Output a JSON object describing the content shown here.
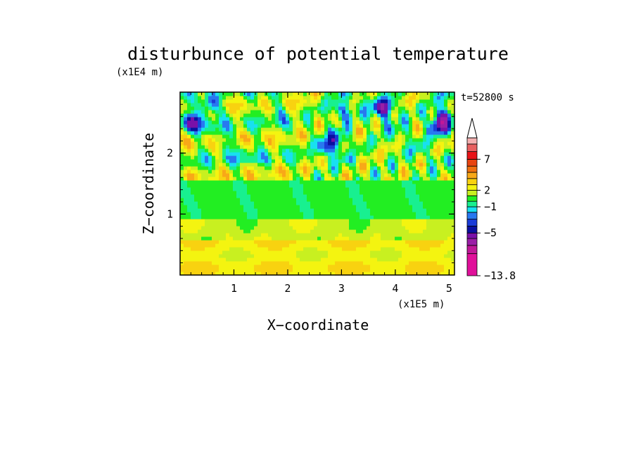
{
  "chart_data": {
    "type": "heatmap",
    "title": "disturbunce of potential temperature",
    "time_label": "t=52800 s",
    "xlabel": "X−coordinate",
    "ylabel": "Z−coordinate",
    "x_unit": "(x1E5 m)",
    "y_unit": "(x1E4 m)",
    "xlim": [
      0,
      5.1
    ],
    "ylim": [
      0,
      3.0
    ],
    "x_ticks": [
      1,
      2,
      3,
      4,
      5
    ],
    "y_ticks": [
      1,
      2
    ],
    "x_tick_labels": [
      "1",
      "2",
      "3",
      "4",
      "5"
    ],
    "y_tick_labels": [
      "1",
      "2"
    ],
    "colorbar": {
      "levels_shown": [
        "7",
        "2",
        "−1",
        "−5",
        "−13.8"
      ],
      "level_values": [
        7,
        2,
        -1,
        -5,
        -13.8
      ],
      "bin_edges": [
        -13.8,
        -11,
        -9,
        -7,
        -5,
        -4,
        -3,
        -2,
        -1,
        0,
        1,
        2,
        3,
        4,
        5,
        6,
        7,
        8,
        9,
        12
      ],
      "colors": [
        "#e0109a",
        "#c01898",
        "#9a1ea6",
        "#7a10a8",
        "#0a10a0",
        "#1a3cd8",
        "#2878f0",
        "#18e0f0",
        "#18f090",
        "#22ee22",
        "#c8f020",
        "#f4f410",
        "#f8d210",
        "#f8a818",
        "#f07010",
        "#e84410",
        "#e81418",
        "#e86060",
        "#f4b0b0"
      ],
      "extend_max": true
    }
  }
}
